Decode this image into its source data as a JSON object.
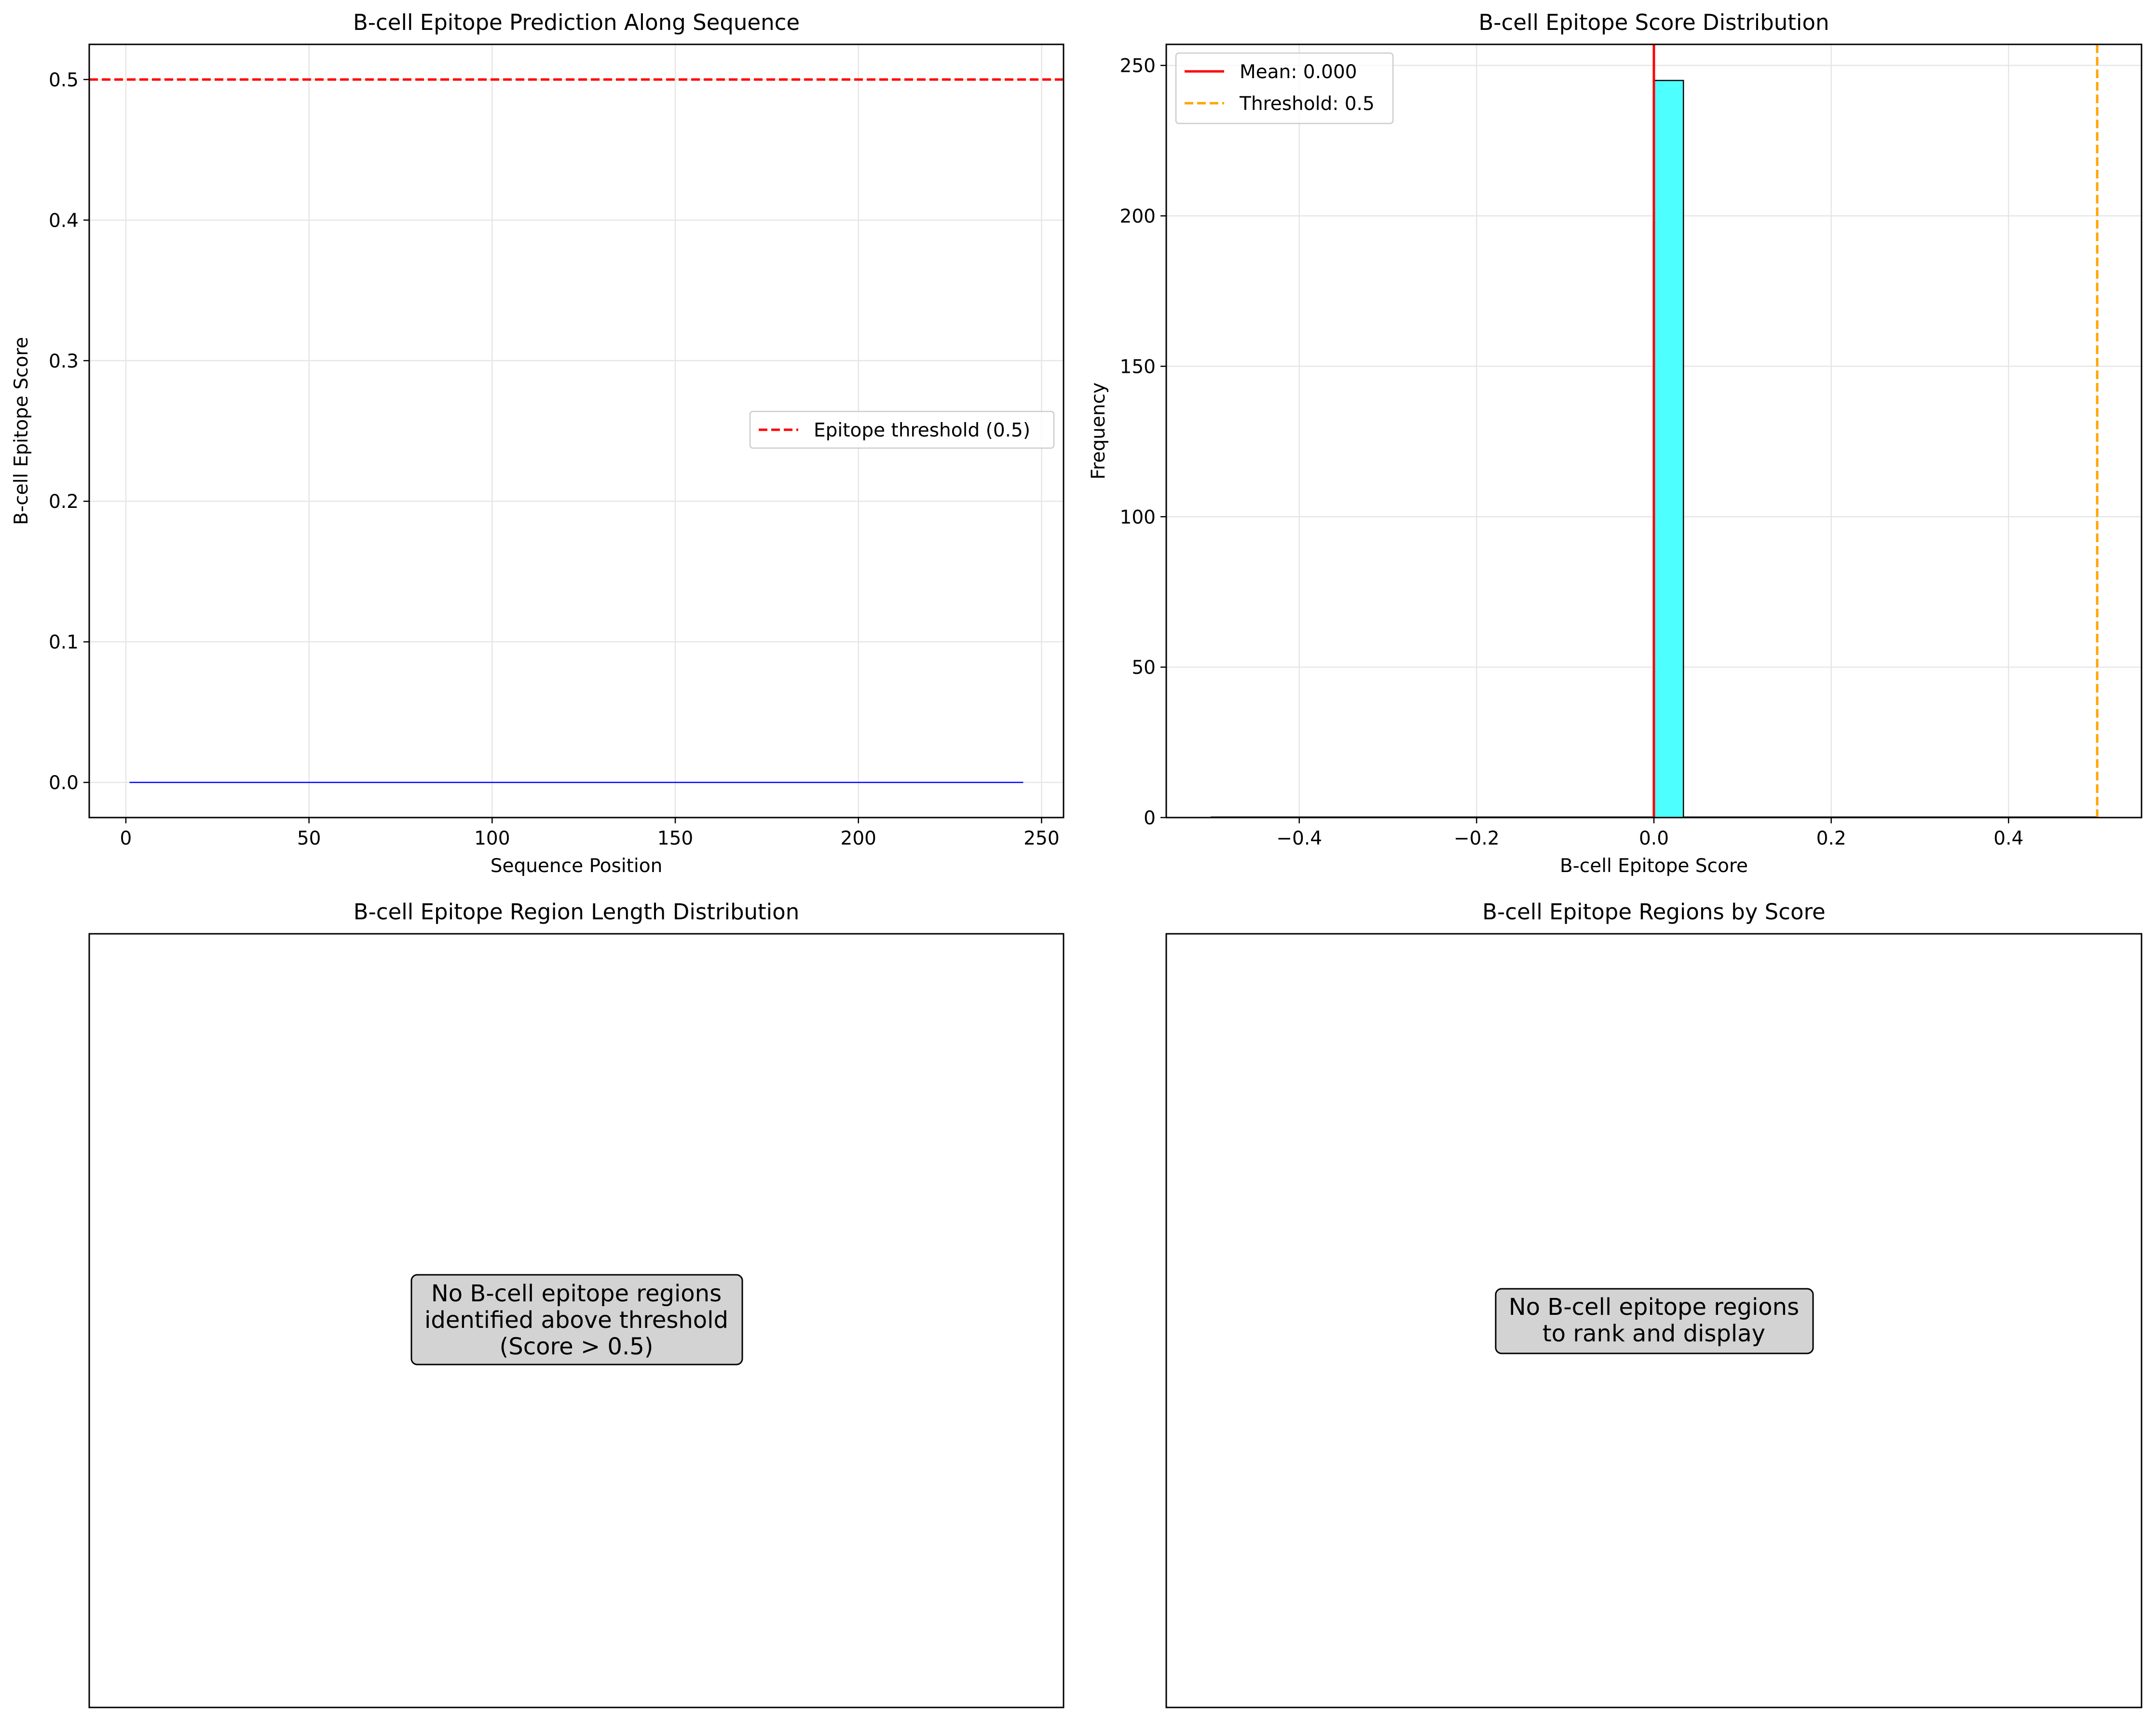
{
  "colors": {
    "line": "#0000ff",
    "threshold_red": "#ff0000",
    "mean_line": "#ff0000",
    "threshold_orange": "#ffa500",
    "hist_bar": "#4dffff",
    "message_box": "#d3d3d3",
    "grid": "#e6e6e6"
  },
  "chart_data": [
    {
      "type": "line",
      "title": "B-cell Epitope Prediction Along Sequence",
      "xlabel": "Sequence Position",
      "ylabel": "B-cell Epitope Score",
      "xlim": [
        -10,
        256
      ],
      "ylim": [
        -0.025,
        0.525
      ],
      "xticks": [
        0,
        50,
        100,
        150,
        200,
        250
      ],
      "yticks": [
        0.0,
        0.1,
        0.2,
        0.3,
        0.4,
        0.5
      ],
      "ytick_labels": [
        "0.0",
        "0.1",
        "0.2",
        "0.3",
        "0.4",
        "0.5"
      ],
      "grid": true,
      "legend_location": "center-right",
      "series": [
        {
          "x": [
            1,
            245
          ],
          "y": [
            0,
            0
          ],
          "color": "#0000ff",
          "style": "solid"
        }
      ],
      "hlines": [
        {
          "name": "Epitope threshold (0.5)",
          "y": 0.5,
          "color": "#ff0000",
          "style": "dashed"
        }
      ]
    },
    {
      "type": "bar",
      "title": "B-cell Epitope Score Distribution",
      "xlabel": "B-cell Epitope Score",
      "ylabel": "Frequency",
      "xlim": [
        -0.55,
        0.55
      ],
      "ylim": [
        0,
        257
      ],
      "xticks": [
        -0.4,
        -0.2,
        0.0,
        0.2,
        0.4
      ],
      "xtick_labels": [
        "−0.4",
        "−0.2",
        "0.0",
        "0.2",
        "0.4"
      ],
      "yticks": [
        0,
        50,
        100,
        150,
        200,
        250
      ],
      "grid": true,
      "legend_location": "top-left",
      "bins": [
        {
          "x0": 0.0,
          "x1": 0.0333,
          "count": 245
        }
      ],
      "baseline": {
        "x0": -0.5,
        "x1": 0.5
      },
      "vlines": [
        {
          "name": "Mean: 0.000",
          "x": 0.0,
          "color": "#ff0000",
          "style": "solid"
        },
        {
          "name": "Threshold: 0.5",
          "x": 0.5,
          "color": "#ffa500",
          "style": "dashed"
        }
      ]
    },
    {
      "type": "bar",
      "title": "B-cell Epitope Region Length Distribution",
      "message": [
        "No B-cell epitope regions",
        "identified above threshold",
        "(Score > 0.5)"
      ]
    },
    {
      "type": "bar",
      "title": "B-cell Epitope Regions by Score",
      "message": [
        "No B-cell epitope regions",
        "to rank and display"
      ]
    }
  ]
}
